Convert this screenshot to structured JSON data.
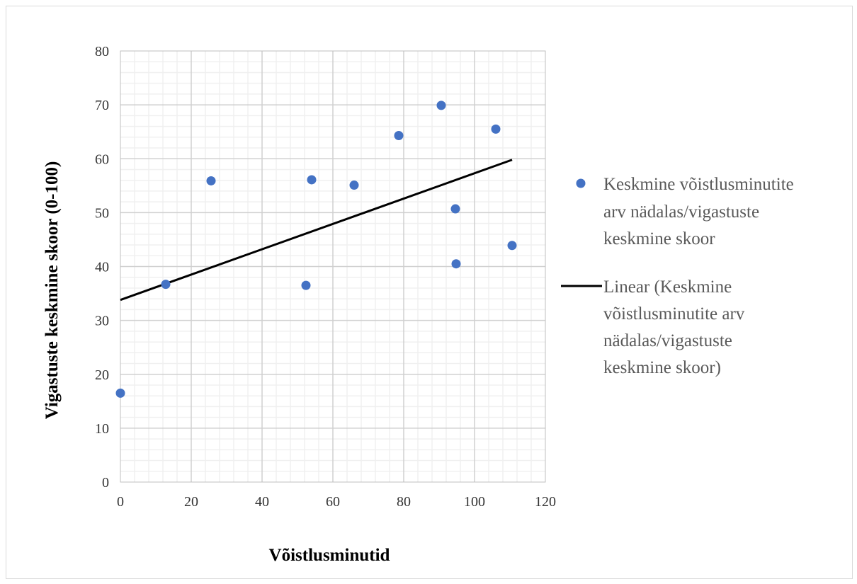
{
  "chart_data": {
    "type": "scatter",
    "title": "",
    "xlabel": "Võistlusminutid",
    "ylabel": "Vigastuste keskmine skoor (0-100)",
    "xlim": [
      0,
      120
    ],
    "ylim": [
      0,
      80
    ],
    "x_ticks": [
      "0",
      "20",
      "40",
      "60",
      "80",
      "100",
      "120"
    ],
    "y_ticks": [
      "0",
      "10",
      "20",
      "30",
      "40",
      "50",
      "60",
      "70",
      "80"
    ],
    "grid": true,
    "legend_position": "right",
    "series": [
      {
        "name": "Keskmine võistlusminutite arv nädalas/vigastuste keskmine skoor",
        "color": "#4472c4",
        "points": [
          {
            "x": 0,
            "y": 16.5
          },
          {
            "x": 12.8,
            "y": 36.7
          },
          {
            "x": 25.6,
            "y": 55.9
          },
          {
            "x": 52.4,
            "y": 36.5
          },
          {
            "x": 54.0,
            "y": 56.1
          },
          {
            "x": 66.0,
            "y": 55.1
          },
          {
            "x": 78.6,
            "y": 64.3
          },
          {
            "x": 90.6,
            "y": 69.9
          },
          {
            "x": 94.6,
            "y": 50.7
          },
          {
            "x": 94.8,
            "y": 40.5
          },
          {
            "x": 106.0,
            "y": 65.5
          },
          {
            "x": 110.6,
            "y": 43.9
          }
        ]
      }
    ],
    "trendline": {
      "name": "Linear (Keskmine võistlusminutite arv nädalas/vigastuste keskmine skoor)",
      "color": "#000000",
      "x_start": 0,
      "y_start": 33.8,
      "x_end": 110.6,
      "y_end": 59.8
    }
  },
  "legend": {
    "scatter_lines": [
      "Keskmine võistlusminutite",
      "arv nädalas/vigastuste",
      "keskmine skoor"
    ],
    "trend_lines": [
      "Linear (Keskmine",
      "võistlusminutite arv",
      "nädalas/vigastuste",
      "keskmine skoor)"
    ]
  }
}
